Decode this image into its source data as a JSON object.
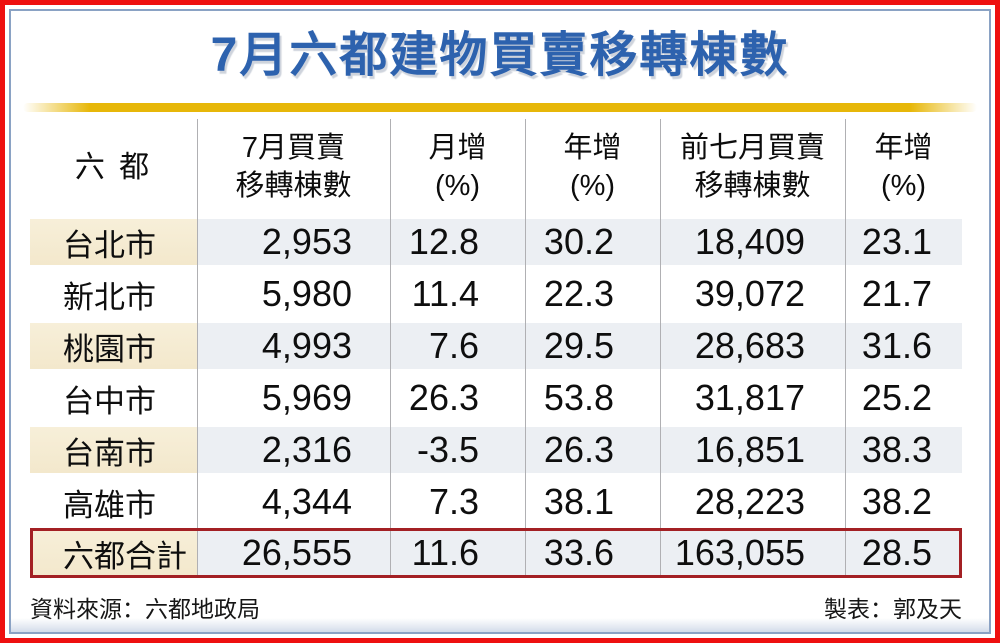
{
  "title": "7月六都建物買賣移轉棟數",
  "table": {
    "headers": [
      {
        "line1": "六 都",
        "line2": ""
      },
      {
        "line1": "7月買賣",
        "line2": "移轉棟數"
      },
      {
        "line1": "月增",
        "line2": "(%)"
      },
      {
        "line1": "年增",
        "line2": "(%)"
      },
      {
        "line1": "前七月買賣",
        "line2": "移轉棟數"
      },
      {
        "line1": "年增",
        "line2": "(%)"
      }
    ],
    "rows": [
      {
        "city": "台北市",
        "values": [
          "2,953",
          "12.8",
          "30.2",
          "18,409",
          "23.1"
        ]
      },
      {
        "city": "新北市",
        "values": [
          "5,980",
          "11.4",
          "22.3",
          "39,072",
          "21.7"
        ]
      },
      {
        "city": "桃園市",
        "values": [
          "4,993",
          "7.6",
          "29.5",
          "28,683",
          "31.6"
        ]
      },
      {
        "city": "台中市",
        "values": [
          "5,969",
          "26.3",
          "53.8",
          "31,817",
          "25.2"
        ]
      },
      {
        "city": "台南市",
        "values": [
          "2,316",
          "-3.5",
          "26.3",
          "16,851",
          "38.3"
        ]
      },
      {
        "city": "高雄市",
        "values": [
          "4,344",
          "7.3",
          "38.1",
          "28,223",
          "38.2"
        ]
      }
    ],
    "total": {
      "city": "六都合計",
      "values": [
        "26,555",
        "11.6",
        "33.6",
        "163,055",
        "28.5"
      ]
    }
  },
  "footer": {
    "source": "資料來源：六都地政局",
    "credit": "製表：郭及天"
  },
  "colors": {
    "title_blue": "#2d62ae",
    "outer_border_red": "#ee1010",
    "inner_frame_blue": "#8aa2c4",
    "gold_bar": "#e7b709",
    "stripe_gray_blue": "#eceff3",
    "stripe_cream": "#f5ecd3",
    "total_border_red": "#a32024",
    "divider_gray": "#b0b0b3"
  },
  "chart_data": {
    "type": "table",
    "title": "7月六都建物買賣移轉棟數",
    "columns": [
      "六 都",
      "7月買賣移轉棟數",
      "月增(%)",
      "年增(%)",
      "前七月買賣移轉棟數",
      "年增(%)"
    ],
    "rows": [
      [
        "台北市",
        2953,
        12.8,
        30.2,
        18409,
        23.1
      ],
      [
        "新北市",
        5980,
        11.4,
        22.3,
        39072,
        21.7
      ],
      [
        "桃園市",
        4993,
        7.6,
        29.5,
        28683,
        31.6
      ],
      [
        "台中市",
        5969,
        26.3,
        53.8,
        31817,
        25.2
      ],
      [
        "台南市",
        2316,
        -3.5,
        26.3,
        16851,
        38.3
      ],
      [
        "高雄市",
        4344,
        7.3,
        38.1,
        28223,
        38.2
      ],
      [
        "六都合計",
        26555,
        11.6,
        33.6,
        163055,
        28.5
      ]
    ],
    "source": "資料來源：六都地政局",
    "credit": "製表：郭及天"
  }
}
